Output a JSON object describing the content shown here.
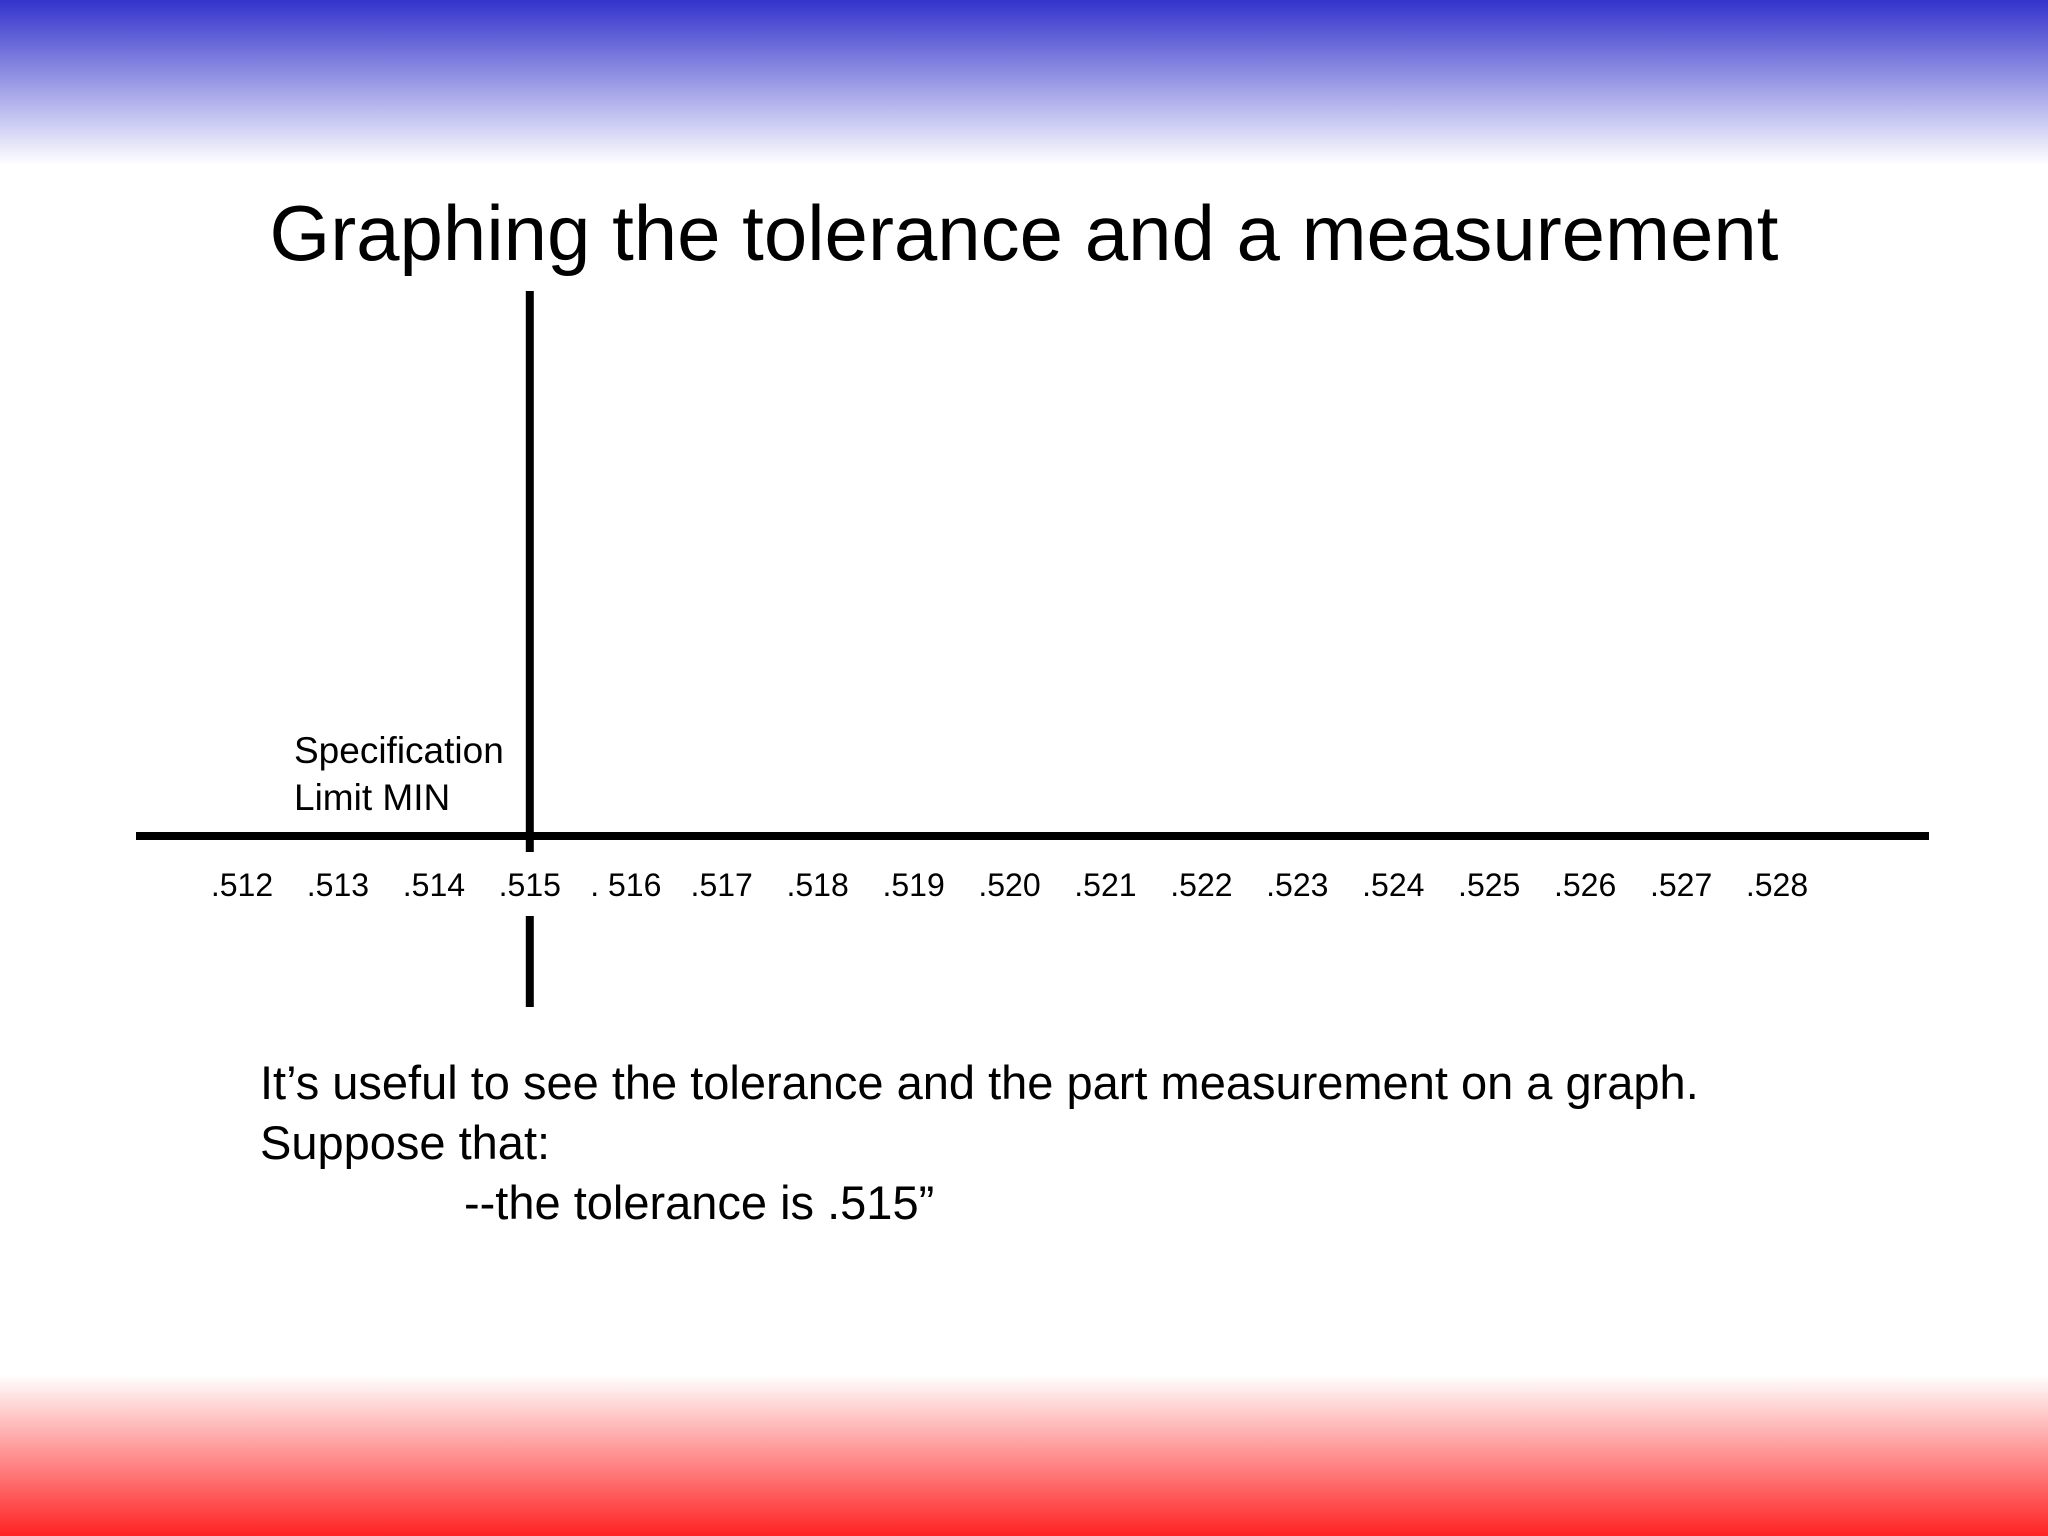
{
  "slide": {
    "title": "Graphing the tolerance and a measurement"
  },
  "colors": {
    "top_band": "#3333cc",
    "bottom_band": "#ff2222",
    "axis": "#000000"
  },
  "chart_data": {
    "type": "number-line",
    "ticks": [
      ".512",
      ".513",
      ".514",
      ".515",
      ". 516",
      ".517",
      ".518",
      ".519",
      ".520",
      ".521",
      ".522",
      ".523",
      ".524",
      ".525",
      ".526",
      ".527",
      ".528"
    ],
    "tick_values": [
      0.512,
      0.513,
      0.514,
      0.515,
      0.516,
      0.517,
      0.518,
      0.519,
      0.52,
      0.521,
      0.522,
      0.523,
      0.524,
      0.525,
      0.526,
      0.527,
      0.528
    ],
    "xlim": [
      0.512,
      0.528
    ],
    "markers": [
      {
        "value": 0.515,
        "label_lines": [
          "Specification",
          "Limit MIN"
        ]
      }
    ]
  },
  "body": {
    "line1": "It’s useful to see the tolerance and the part measurement on a graph.",
    "line2": "Suppose that:",
    "line3": "--the tolerance is .515”"
  }
}
